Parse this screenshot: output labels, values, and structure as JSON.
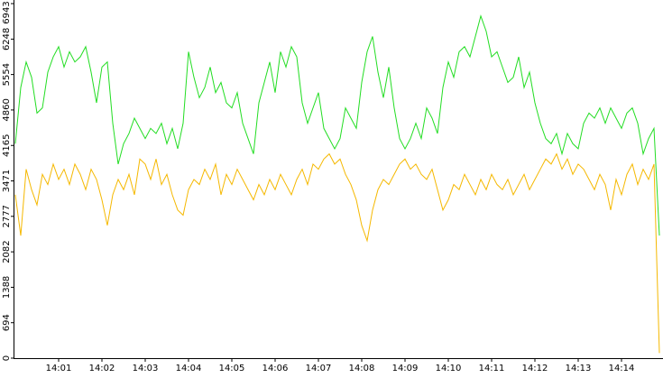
{
  "chart_data": {
    "type": "line",
    "categories": [
      null,
      null,
      null,
      null,
      null,
      null,
      null,
      null,
      "14:01",
      null,
      null,
      null,
      null,
      null,
      null,
      null,
      "14:02",
      null,
      null,
      null,
      null,
      null,
      null,
      null,
      "14:03",
      null,
      null,
      null,
      null,
      null,
      null,
      null,
      "14:04",
      null,
      null,
      null,
      null,
      null,
      null,
      null,
      "14:05",
      null,
      null,
      null,
      null,
      null,
      null,
      null,
      "14:06",
      null,
      null,
      null,
      null,
      null,
      null,
      null,
      "14:07",
      null,
      null,
      null,
      null,
      null,
      null,
      null,
      "14:08",
      null,
      null,
      null,
      null,
      null,
      null,
      null,
      "14:09",
      null,
      null,
      null,
      null,
      null,
      null,
      null,
      "14:10",
      null,
      null,
      null,
      null,
      null,
      null,
      null,
      "14:11",
      null,
      null,
      null,
      null,
      null,
      null,
      null,
      "14:12",
      null,
      null,
      null,
      null,
      null,
      null,
      null,
      "14:13",
      null,
      null,
      null,
      null,
      null,
      null,
      null,
      "14:14",
      null,
      null,
      null,
      null,
      null,
      null,
      null
    ],
    "series": [
      {
        "color": "#22dd22",
        "values": [
          4200,
          5300,
          5800,
          5500,
          4800,
          4900,
          5600,
          5900,
          6100,
          5700,
          6000,
          5800,
          5900,
          6100,
          5600,
          5000,
          5700,
          5800,
          4600,
          3800,
          4200,
          4400,
          4700,
          4500,
          4300,
          4500,
          4400,
          4600,
          4200,
          4500,
          4100,
          4600,
          6000,
          5500,
          5100,
          5300,
          5700,
          5200,
          5400,
          5000,
          4900,
          5200,
          4600,
          4300,
          4000,
          5000,
          5400,
          5800,
          5200,
          6000,
          5700,
          6100,
          5900,
          5000,
          4600,
          4900,
          5200,
          4500,
          4300,
          4100,
          4300,
          4900,
          4700,
          4500,
          5400,
          6000,
          6300,
          5600,
          5100,
          5700,
          4900,
          4300,
          4100,
          4300,
          4600,
          4300,
          4900,
          4700,
          4400,
          5300,
          5800,
          5500,
          6000,
          6100,
          5900,
          6300,
          6700,
          6400,
          5900,
          6000,
          5700,
          5400,
          5500,
          5900,
          5300,
          5600,
          5000,
          4600,
          4300,
          4200,
          4400,
          4000,
          4400,
          4200,
          4100,
          4600,
          4800,
          4700,
          4900,
          4600,
          4900,
          4700,
          4500,
          4800,
          4900,
          4600,
          4000,
          4300,
          4500,
          2400
        ]
      },
      {
        "color": "#f5b800",
        "values": [
          3200,
          2400,
          3700,
          3300,
          3000,
          3600,
          3400,
          3800,
          3500,
          3700,
          3400,
          3800,
          3600,
          3300,
          3700,
          3500,
          3100,
          2600,
          3200,
          3500,
          3300,
          3600,
          3200,
          3900,
          3800,
          3500,
          3900,
          3400,
          3600,
          3200,
          2900,
          2800,
          3300,
          3500,
          3400,
          3700,
          3500,
          3800,
          3200,
          3600,
          3400,
          3700,
          3500,
          3300,
          3100,
          3400,
          3200,
          3500,
          3300,
          3600,
          3400,
          3200,
          3500,
          3700,
          3400,
          3800,
          3700,
          3900,
          4000,
          3800,
          3900,
          3600,
          3400,
          3100,
          2600,
          2300,
          2900,
          3300,
          3500,
          3400,
          3600,
          3800,
          3900,
          3700,
          3800,
          3600,
          3500,
          3700,
          3300,
          2900,
          3100,
          3400,
          3300,
          3600,
          3400,
          3200,
          3500,
          3300,
          3600,
          3400,
          3300,
          3500,
          3200,
          3400,
          3600,
          3300,
          3500,
          3700,
          3900,
          3800,
          4000,
          3700,
          3900,
          3600,
          3800,
          3700,
          3500,
          3300,
          3600,
          3400,
          2900,
          3500,
          3200,
          3600,
          3800,
          3400,
          3700,
          3500,
          3800,
          100
        ]
      }
    ],
    "ylim": [
      0,
      6943
    ],
    "yticks": [
      0,
      694,
      1388,
      2082,
      2777,
      3471,
      4165,
      4860,
      5554,
      6248,
      6943
    ]
  }
}
